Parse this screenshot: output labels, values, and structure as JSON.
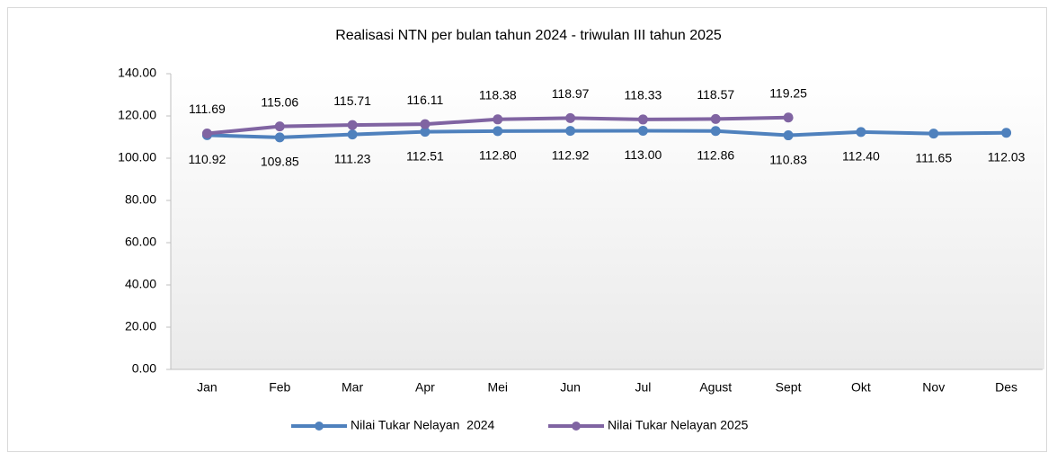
{
  "chart_data": {
    "type": "line",
    "title": "Realisasi NTN per bulan tahun 2024 - triwulan III tahun 2025",
    "categories": [
      "Jan",
      "Feb",
      "Mar",
      "Apr",
      "Mei",
      "Jun",
      "Jul",
      "Agust",
      "Sept",
      "Okt",
      "Nov",
      "Des"
    ],
    "series": [
      {
        "name": "Nilai Tukar Nelayan  2024",
        "color": "#4f81bd",
        "values": [
          110.92,
          109.85,
          111.23,
          112.51,
          112.8,
          112.92,
          113,
          112.86,
          110.83,
          112.4,
          111.65,
          112.03
        ],
        "value_labels": [
          "110.92",
          "109.85",
          "111.23",
          "112.51",
          "112.80",
          "112.92",
          "113.00",
          "112.86",
          "110.83",
          "112.40",
          "111.65",
          "112.03"
        ]
      },
      {
        "name": "Nilai Tukar Nelayan 2025",
        "color": "#8064a2",
        "values": [
          111.69,
          115.06,
          115.71,
          116.11,
          118.38,
          118.97,
          118.33,
          118.57,
          119.25,
          null,
          null,
          null
        ],
        "value_labels": [
          "111.69",
          "115.06",
          "115.71",
          "116.11",
          "118.38",
          "118.97",
          "118.33",
          "118.57",
          "119.25",
          null,
          null,
          null
        ]
      }
    ],
    "ylim": [
      0,
      140
    ],
    "yticks": [
      {
        "value": 0,
        "label": "0.00"
      },
      {
        "value": 20,
        "label": "20.00"
      },
      {
        "value": 40,
        "label": "40.00"
      },
      {
        "value": 60,
        "label": "60.00"
      },
      {
        "value": 80,
        "label": "80.00"
      },
      {
        "value": 100,
        "label": "100.00"
      },
      {
        "value": 120,
        "label": "120.00"
      },
      {
        "value": 140,
        "label": "140.00"
      }
    ],
    "legend": "bottom"
  }
}
